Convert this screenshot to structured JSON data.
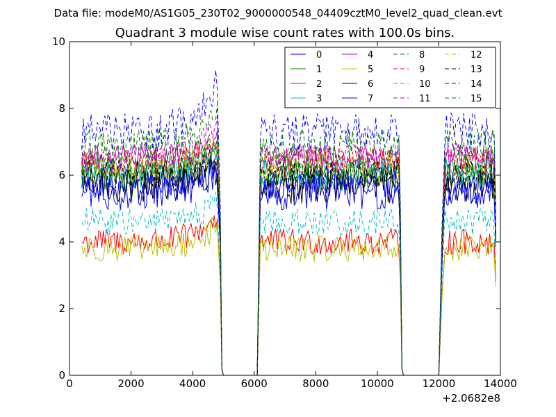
{
  "chart_data": {
    "type": "line",
    "suptitle": "Data file: modeM0/AS1G05_230T02_9000000548_04409cztM0_level2_quad_clean.evt",
    "title": "Quadrant 3 module wise count rates with 100.0s bins.",
    "xlabel": "",
    "ylabel": "",
    "x_offset_label": "+2.0682e8",
    "xlim": [
      0,
      14000
    ],
    "ylim": [
      0,
      10
    ],
    "xticks": [
      0,
      2000,
      4000,
      6000,
      8000,
      10000,
      12000,
      14000
    ],
    "yticks": [
      0,
      2,
      4,
      6,
      8,
      10
    ],
    "xtick_labels": [
      "0",
      "2000",
      "4000",
      "6000",
      "8000",
      "10000",
      "12000",
      "14000"
    ],
    "ytick_labels": [
      "0",
      "2",
      "4",
      "6",
      "8",
      "10"
    ],
    "grid": false,
    "legend_position": "top-right",
    "legend_columns": 4,
    "segments": [
      {
        "start": 400,
        "end": 4800
      },
      {
        "start": 6200,
        "end": 10700
      },
      {
        "start": 12200,
        "end": 13800
      }
    ],
    "gap_points": [
      [
        4900,
        4.0
      ],
      [
        4950,
        0.3
      ],
      [
        5000,
        0
      ],
      [
        6100,
        0
      ],
      [
        6150,
        1.0
      ],
      [
        10750,
        4.0
      ],
      [
        10800,
        0.3
      ],
      [
        10850,
        0
      ],
      [
        12000,
        0
      ],
      [
        12100,
        3.0
      ]
    ],
    "series": [
      {
        "name": "0",
        "mean": 5.8,
        "amp": 0.3,
        "end_rise": 0.6,
        "color": "#0000ff",
        "dash": "solid"
      },
      {
        "name": "1",
        "mean": 6.0,
        "amp": 0.3,
        "end_rise": 0.7,
        "color": "#008000",
        "dash": "solid"
      },
      {
        "name": "2",
        "mean": 4.0,
        "amp": 0.25,
        "end_rise": 0.8,
        "color": "#ff0000",
        "dash": "solid"
      },
      {
        "name": "3",
        "mean": 6.1,
        "amp": 0.3,
        "end_rise": 0.6,
        "color": "#00bfbf",
        "dash": "solid"
      },
      {
        "name": "4",
        "mean": 6.5,
        "amp": 0.25,
        "end_rise": 0.6,
        "color": "#bf00bf",
        "dash": "solid"
      },
      {
        "name": "5",
        "mean": 3.8,
        "amp": 0.25,
        "end_rise": 0.7,
        "color": "#bfbf00",
        "dash": "solid"
      },
      {
        "name": "6",
        "mean": 5.7,
        "amp": 0.35,
        "end_rise": 0.6,
        "color": "#000000",
        "dash": "solid"
      },
      {
        "name": "7",
        "mean": 5.5,
        "amp": 0.35,
        "end_rise": 0.7,
        "color": "#0000ff",
        "dash": "solid"
      },
      {
        "name": "8",
        "mean": 6.3,
        "amp": 0.3,
        "end_rise": 0.6,
        "color": "#008000",
        "dash": "dashed"
      },
      {
        "name": "9",
        "mean": 6.4,
        "amp": 0.25,
        "end_rise": 0.6,
        "color": "#ff0000",
        "dash": "dashed"
      },
      {
        "name": "10",
        "mean": 4.6,
        "amp": 0.25,
        "end_rise": 0.6,
        "color": "#00bfbf",
        "dash": "dashed"
      },
      {
        "name": "11",
        "mean": 6.6,
        "amp": 0.25,
        "end_rise": 0.8,
        "color": "#bf00bf",
        "dash": "dashed"
      },
      {
        "name": "12",
        "mean": 6.2,
        "amp": 0.3,
        "end_rise": 0.5,
        "color": "#bfbf00",
        "dash": "dashed"
      },
      {
        "name": "13",
        "mean": 6.0,
        "amp": 0.3,
        "end_rise": 0.5,
        "color": "#000000",
        "dash": "dashed"
      },
      {
        "name": "14",
        "mean": 7.3,
        "amp": 0.35,
        "end_rise": 1.6,
        "color": "#0000ff",
        "dash": "dashed"
      },
      {
        "name": "15",
        "mean": 6.9,
        "amp": 0.3,
        "end_rise": 0.8,
        "color": "#008000",
        "dash": "dashed"
      }
    ]
  }
}
